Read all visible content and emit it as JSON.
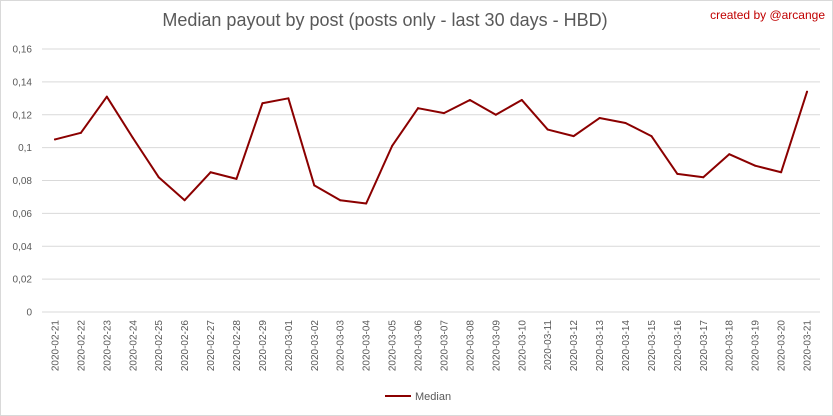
{
  "chart_data": {
    "type": "line",
    "title": "Median payout by post (posts only - last 30 days - HBD)",
    "credit": "created by @arcange",
    "xlabel": "",
    "ylabel": "",
    "ylim": [
      0,
      0.16
    ],
    "yticks": [
      "0",
      "0,02",
      "0,04",
      "0,06",
      "0,08",
      "0,1",
      "0,12",
      "0,14",
      "0,16"
    ],
    "grid": true,
    "legend_position": "bottom",
    "categories": [
      "2020-02-21",
      "2020-02-22",
      "2020-02-23",
      "2020-02-24",
      "2020-02-25",
      "2020-02-26",
      "2020-02-27",
      "2020-02-28",
      "2020-02-29",
      "2020-03-01",
      "2020-03-02",
      "2020-03-03",
      "2020-03-04",
      "2020-03-05",
      "2020-03-06",
      "2020-03-07",
      "2020-03-08",
      "2020-03-09",
      "2020-03-10",
      "2020-03-11",
      "2020-03-12",
      "2020-03-13",
      "2020-03-14",
      "2020-03-15",
      "2020-03-16",
      "2020-03-17",
      "2020-03-18",
      "2020-03-19",
      "2020-03-20",
      "2020-03-21"
    ],
    "series": [
      {
        "name": "Median",
        "color": "#8b0000",
        "values": [
          0.105,
          0.109,
          0.131,
          0.106,
          0.082,
          0.068,
          0.085,
          0.081,
          0.127,
          0.13,
          0.077,
          0.068,
          0.066,
          0.101,
          0.124,
          0.121,
          0.129,
          0.12,
          0.129,
          0.111,
          0.107,
          0.118,
          0.115,
          0.107,
          0.084,
          0.082,
          0.096,
          0.089,
          0.085,
          0.134
        ]
      }
    ]
  }
}
